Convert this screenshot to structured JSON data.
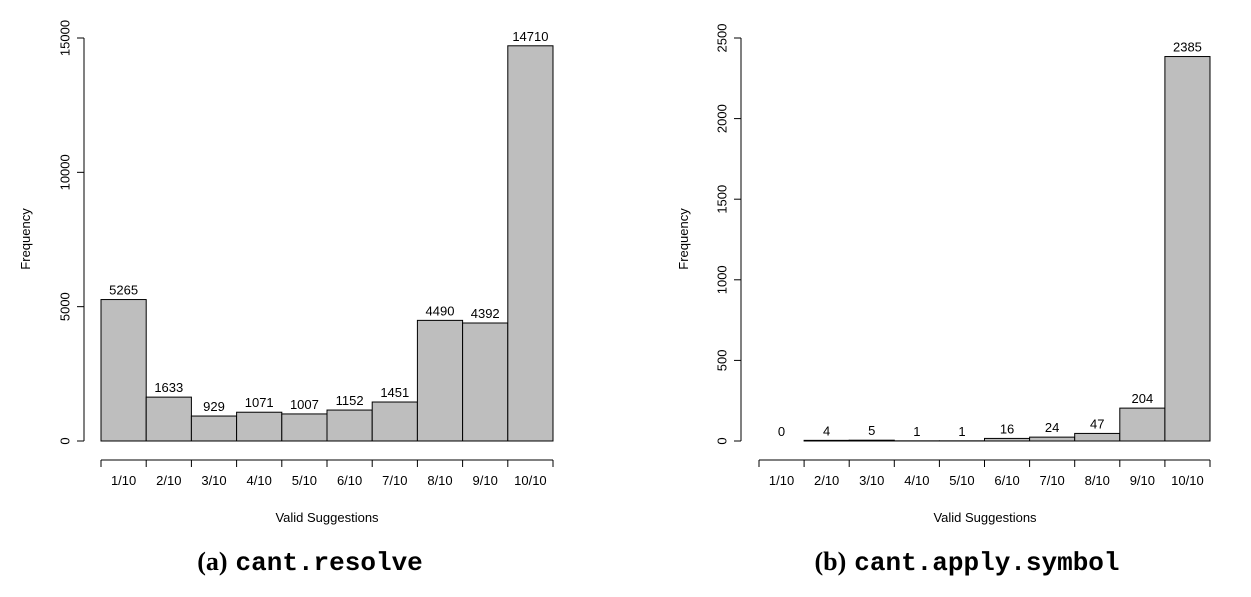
{
  "chart_data": [
    {
      "type": "bar",
      "caption_prefix": "(a)",
      "caption_code": "cant.resolve",
      "xlabel": "Valid Suggestions",
      "ylabel": "Frequency",
      "ylim": [
        0,
        15000
      ],
      "yticks": [
        "0",
        "5000",
        "10000",
        "15000"
      ],
      "categories": [
        "1/10",
        "2/10",
        "3/10",
        "4/10",
        "5/10",
        "6/10",
        "7/10",
        "8/10",
        "9/10",
        "10/10"
      ],
      "values": [
        5265,
        1633,
        929,
        1071,
        1007,
        1152,
        1451,
        4490,
        4392,
        14710
      ],
      "value_labels": [
        "5265",
        "1633",
        "929",
        "1071",
        "1007",
        "1152",
        "1451",
        "4490",
        "4392",
        "14710"
      ],
      "bar_color": "#bebebe"
    },
    {
      "type": "bar",
      "caption_prefix": "(b)",
      "caption_code": "cant.apply.symbol",
      "xlabel": "Valid Suggestions",
      "ylabel": "Frequency",
      "ylim": [
        0,
        2500
      ],
      "yticks": [
        "0",
        "500",
        "1000",
        "1500",
        "2000",
        "2500"
      ],
      "categories": [
        "1/10",
        "2/10",
        "3/10",
        "4/10",
        "5/10",
        "6/10",
        "7/10",
        "8/10",
        "9/10",
        "10/10"
      ],
      "values": [
        0,
        4,
        5,
        1,
        1,
        16,
        24,
        47,
        204,
        2385
      ],
      "value_labels": [
        "0",
        "4",
        "5",
        "1",
        "1",
        "16",
        "24",
        "47",
        "204",
        "2385"
      ],
      "bar_color": "#bebebe"
    }
  ]
}
